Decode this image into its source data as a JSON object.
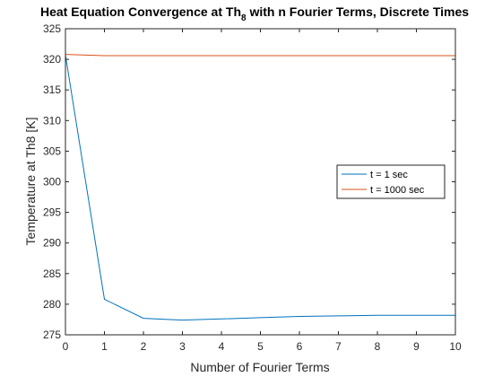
{
  "chart_data": {
    "type": "line",
    "title": "Heat Equation Convergence at Th",
    "title_subscript": "8",
    "title_suffix": " with n Fourier Terms, Discrete Times",
    "xlabel": "Number of Fourier Terms",
    "ylabel": "Temperature at Th8 [K]",
    "xlim": [
      0,
      10
    ],
    "ylim": [
      275,
      325
    ],
    "xticks": [
      0,
      1,
      2,
      3,
      4,
      5,
      6,
      7,
      8,
      9,
      10
    ],
    "yticks": [
      275,
      280,
      285,
      290,
      295,
      300,
      305,
      310,
      315,
      320,
      325
    ],
    "grid": false,
    "legend_position": "right",
    "x": [
      0,
      1,
      2,
      3,
      4,
      5,
      6,
      7,
      8,
      9,
      10
    ],
    "series": [
      {
        "name": "t = 1 sec",
        "color": "#0072BD",
        "values": [
          320.7,
          280.8,
          277.7,
          277.4,
          277.6,
          277.8,
          278.0,
          278.1,
          278.2,
          278.2,
          278.2
        ]
      },
      {
        "name": "t = 1000 sec",
        "color": "#D95319",
        "values": [
          320.8,
          320.6,
          320.6,
          320.6,
          320.6,
          320.6,
          320.6,
          320.6,
          320.6,
          320.6,
          320.6
        ]
      }
    ]
  }
}
